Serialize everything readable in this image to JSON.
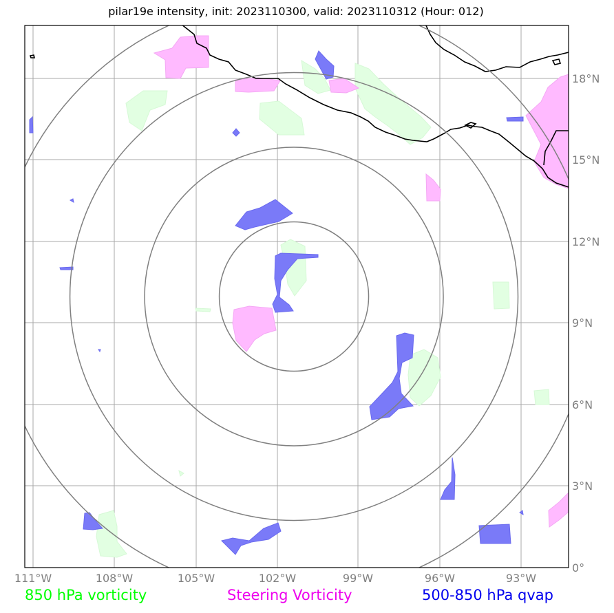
{
  "title": "pilar19e intensity, init: 2023110300, valid: 2023110312 (Hour: 012)",
  "lon_labels": [
    "111°W",
    "108°W",
    "105°W",
    "102°W",
    "99°W",
    "96°W",
    "93°W"
  ],
  "lat_labels": [
    "0°",
    "3°N",
    "6°N",
    "9°N",
    "12°N",
    "15°N",
    "18°N"
  ],
  "legend": {
    "green": "850 hPa vorticity",
    "pink": "Steering Vorticity",
    "blue": "500-850 hPa qvap"
  },
  "colors": {
    "green": "#00ff00",
    "pink": "#ee00ee",
    "blue": "#0000ee",
    "fill_green": "#e2ffe2",
    "fill_pink": "#ffbaff",
    "fill_blue": "#7a7af8"
  },
  "map": {
    "extent": {
      "lon": [
        -111.3,
        -91.3
      ],
      "lat": [
        0,
        20
      ]
    },
    "rings_center": {
      "lon": -101.4,
      "lat": 10
    },
    "rings_radius_deg": [
      2.75,
      5.5,
      8.25,
      11
    ]
  }
}
